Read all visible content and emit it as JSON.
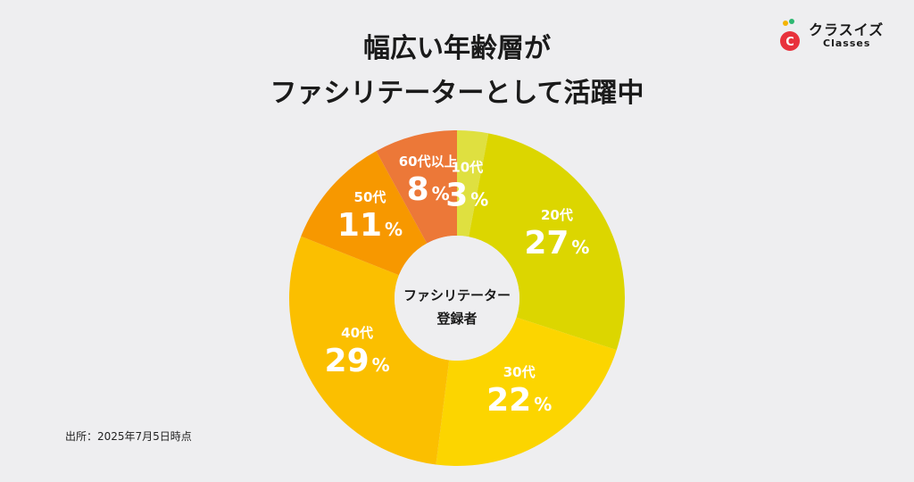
{
  "title": {
    "line1": "幅広い年齢層が",
    "line2": "ファシリテーターとして活躍中"
  },
  "logo": {
    "name_jp": "クラスイズ",
    "name_en": "Classes",
    "mark_letter": "C",
    "colors": [
      "#e8323c",
      "#f4b400",
      "#2eb872"
    ]
  },
  "center_label": {
    "line1": "ファシリテーター",
    "line2": "登録者"
  },
  "source": "出所：2025年7月5日時点",
  "chart_data": {
    "type": "pie",
    "variant": "donut",
    "unit": "%",
    "categories": [
      "10代",
      "20代",
      "30代",
      "40代",
      "50代",
      "60代以上"
    ],
    "values": [
      3,
      27,
      22,
      29,
      11,
      8
    ],
    "colors": [
      "#dfe040",
      "#dcd600",
      "#fcd500",
      "#fbbf00",
      "#f79800",
      "#ec7838"
    ]
  }
}
